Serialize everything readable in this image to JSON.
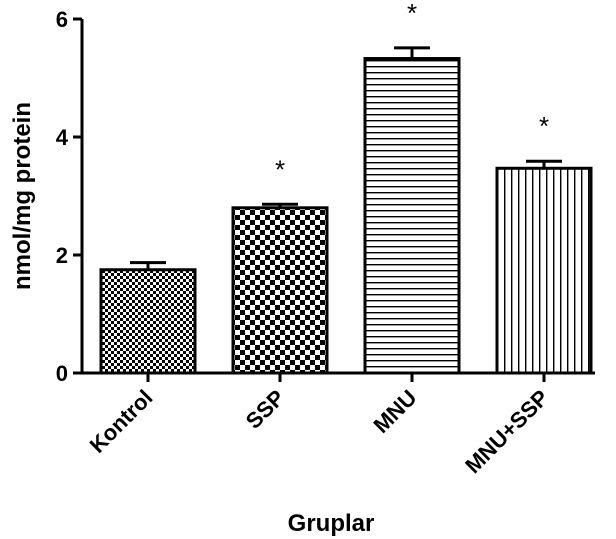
{
  "chart_data": {
    "type": "bar",
    "categories": [
      "Kontrol",
      "SSP",
      "MNU",
      "MNU+SSP"
    ],
    "values": [
      1.75,
      2.8,
      5.33,
      3.47
    ],
    "errors": [
      0.12,
      0.06,
      0.18,
      0.12
    ],
    "significance": [
      "",
      "*",
      "*",
      "*"
    ],
    "bar_patterns": [
      "fine-checker",
      "coarse-checker",
      "horizontal-lines",
      "vertical-lines"
    ],
    "title": "",
    "xlabel": "Gruplar",
    "ylabel": "nmol/mg protein",
    "ylim": [
      0,
      6
    ],
    "yticks": [
      0,
      2,
      4,
      6
    ],
    "grid": false,
    "legend": "none",
    "colors": {
      "bar_stroke": "#000000",
      "fill": "#ffffff"
    }
  }
}
